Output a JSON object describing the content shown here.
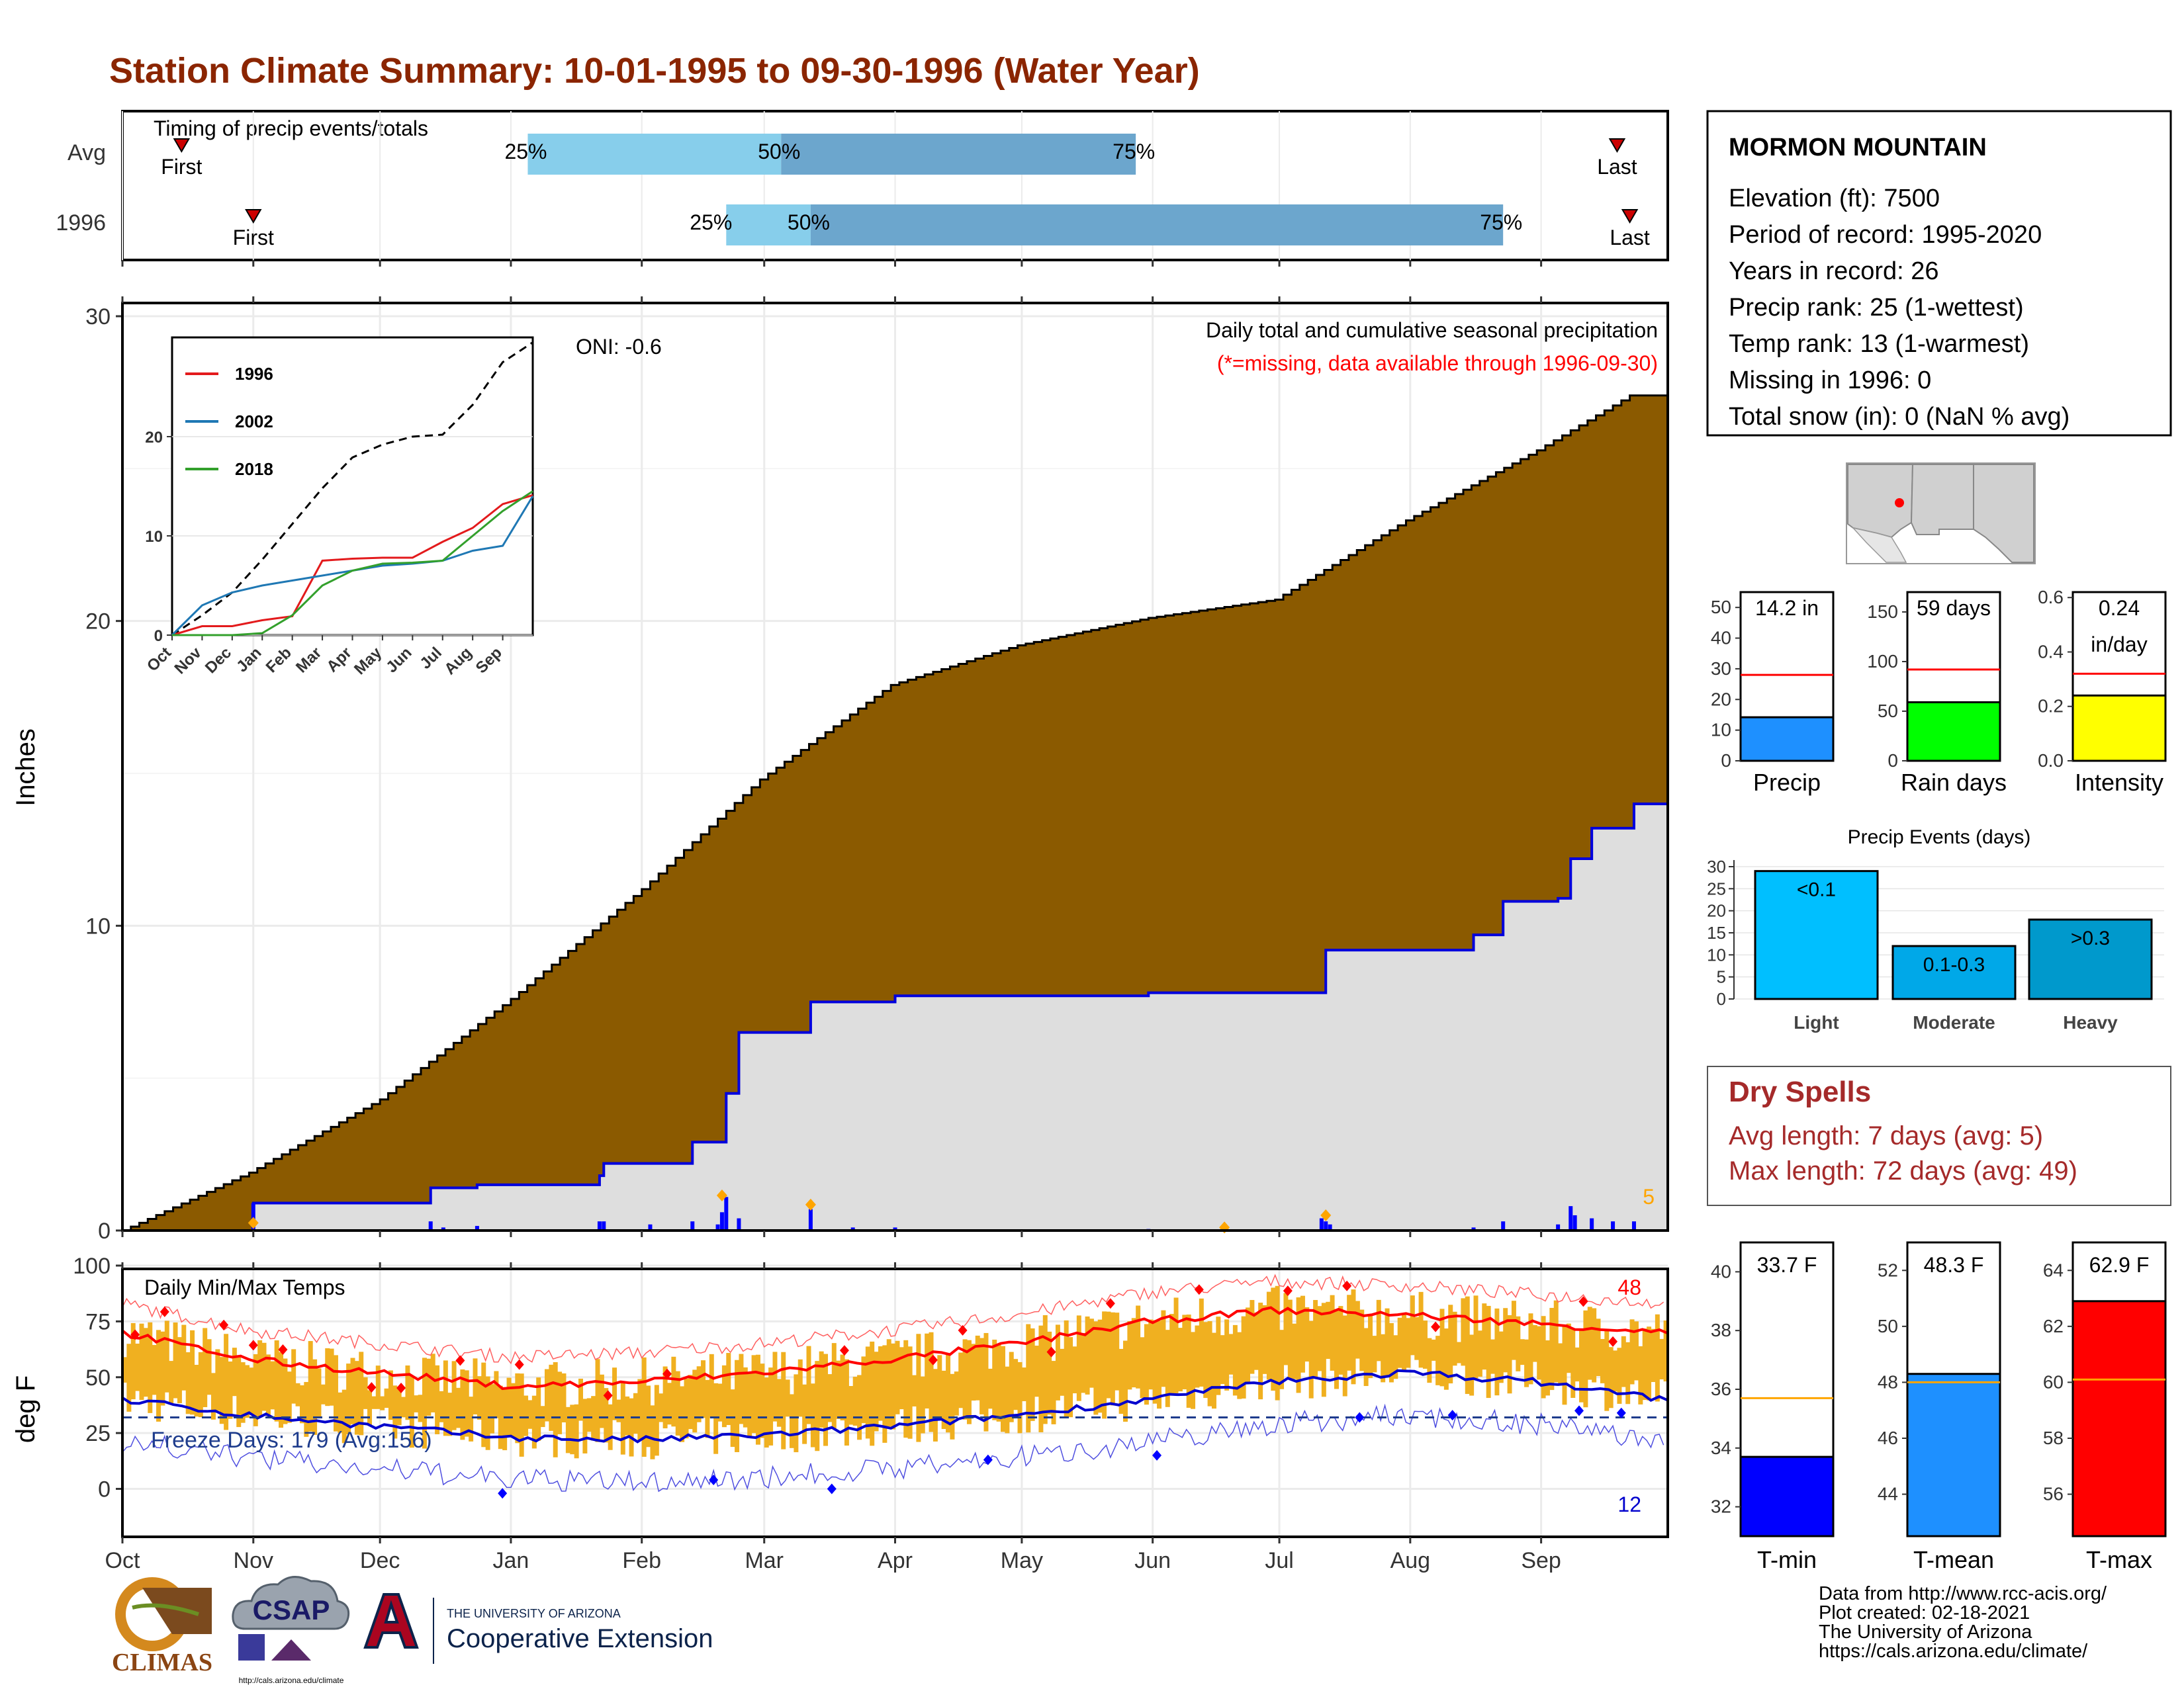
{
  "title": "Station Climate Summary: 10-01-1995 to 09-30-1996 (Water Year)",
  "colors": {
    "title": "#8B2500",
    "brown": "#8B5A00",
    "light_blue": "#87CEEB",
    "mid_blue": "#6CA6CD",
    "bar_blue": "#0000FF",
    "orange": "#FFA500",
    "gold": "#F0B020",
    "red": "#FF0000",
    "navy": "#00008B",
    "gray_fill": "#DEDEDE",
    "dry_red": "#A52A2A"
  },
  "months": [
    "Oct",
    "Nov",
    "Dec",
    "Jan",
    "Feb",
    "Mar",
    "Apr",
    "May",
    "Jun",
    "Jul",
    "Aug",
    "Sep"
  ],
  "timing": {
    "label": "Timing of precip events/totals",
    "rows": [
      "Avg",
      "1996"
    ],
    "avg": {
      "first_day": 14,
      "p25": 96,
      "p50": 156,
      "p75": 240,
      "last_day": 354
    },
    "y1996": {
      "first_day": 31,
      "p25": 143,
      "p50": 163,
      "p75": 327,
      "last_day": 357
    },
    "first_label": "First",
    "last_label": "Last",
    "pct_labels": [
      "25%",
      "50%",
      "75%"
    ]
  },
  "precip": {
    "ylabel": "Inches",
    "title": "Daily total and cumulative seasonal precipitation",
    "missing_note": "(*=missing, data available through 1996-09-30)",
    "max_daily_label": "5",
    "ylim": [
      0,
      30
    ],
    "yticks": [
      "0",
      "10",
      "20",
      "30"
    ],
    "avg_cumulative": [
      [
        0,
        0
      ],
      [
        30,
        1.9
      ],
      [
        61,
        4.3
      ],
      [
        92,
        7.6
      ],
      [
        123,
        11.2
      ],
      [
        151,
        14.8
      ],
      [
        182,
        17.9
      ],
      [
        212,
        19.2
      ],
      [
        243,
        20.1
      ],
      [
        273,
        20.7
      ],
      [
        304,
        23.3
      ],
      [
        335,
        25.6
      ],
      [
        357,
        27.4
      ],
      [
        366,
        27.4
      ],
      [
        366,
        26
      ]
    ],
    "year_cumulative": [
      [
        0,
        0
      ],
      [
        30,
        0
      ],
      [
        31,
        0.9
      ],
      [
        59,
        0.9
      ],
      [
        72,
        0.9
      ],
      [
        73,
        1.4
      ],
      [
        84,
        1.5
      ],
      [
        113,
        1.8
      ],
      [
        114,
        2.2
      ],
      [
        135,
        2.9
      ],
      [
        143,
        4.5
      ],
      [
        146,
        6.5
      ],
      [
        160,
        6.5
      ],
      [
        163,
        7.5
      ],
      [
        183,
        7.7
      ],
      [
        243,
        7.8
      ],
      [
        263,
        7.8
      ],
      [
        285,
        9.2
      ],
      [
        320,
        9.7
      ],
      [
        327,
        10.8
      ],
      [
        340,
        10.9
      ],
      [
        343,
        12.2
      ],
      [
        348,
        13.2
      ],
      [
        358,
        14.0
      ],
      [
        366,
        14.1
      ]
    ],
    "daily_bars": [
      [
        31,
        0.9
      ],
      [
        73,
        0.3
      ],
      [
        76,
        0.1
      ],
      [
        84,
        0.15
      ],
      [
        113,
        0.3
      ],
      [
        114,
        0.3
      ],
      [
        125,
        0.2
      ],
      [
        135,
        0.3
      ],
      [
        141,
        0.2
      ],
      [
        142,
        0.6
      ],
      [
        143,
        1.1
      ],
      [
        146,
        0.4
      ],
      [
        163,
        0.7
      ],
      [
        173,
        0.1
      ],
      [
        183,
        0.1
      ],
      [
        243,
        0.05
      ],
      [
        284,
        0.4
      ],
      [
        285,
        0.3
      ],
      [
        286,
        0.2
      ],
      [
        320,
        0.1
      ],
      [
        327,
        0.3
      ],
      [
        340,
        0.2
      ],
      [
        343,
        0.8
      ],
      [
        344,
        0.5
      ],
      [
        348,
        0.4
      ],
      [
        353,
        0.3
      ],
      [
        358,
        0.3
      ]
    ],
    "orange_markers": [
      [
        31,
        0.25
      ],
      [
        142,
        1.15
      ],
      [
        163,
        0.85
      ],
      [
        261,
        0.1
      ],
      [
        285,
        0.5
      ]
    ],
    "inset": {
      "ylim": [
        0,
        30
      ],
      "yticks": [
        "0",
        "10",
        "20"
      ],
      "months": [
        "Oct",
        "Nov",
        "Dec",
        "Jan",
        "Feb",
        "Mar",
        "Apr",
        "May",
        "Jun",
        "Jul",
        "Aug",
        "Sep"
      ],
      "oni_label": "ONI: -0.6",
      "legend": [
        {
          "name": "1996",
          "color": "#E31A1C"
        },
        {
          "name": "2002",
          "color": "#1F78B4"
        },
        {
          "name": "2018",
          "color": "#33A02C"
        }
      ],
      "avg": [
        [
          0,
          0
        ],
        [
          1,
          2
        ],
        [
          2,
          4.3
        ],
        [
          3,
          7.6
        ],
        [
          4,
          11.2
        ],
        [
          5,
          14.8
        ],
        [
          6,
          17.9
        ],
        [
          7,
          19.2
        ],
        [
          8,
          20
        ],
        [
          9,
          20.2
        ],
        [
          10,
          23.2
        ],
        [
          11,
          27.5
        ],
        [
          12,
          29.5
        ]
      ],
      "s1996": [
        [
          0,
          0
        ],
        [
          1,
          0.9
        ],
        [
          2,
          0.9
        ],
        [
          3,
          1.5
        ],
        [
          4,
          1.9
        ],
        [
          5,
          7.5
        ],
        [
          6,
          7.7
        ],
        [
          7,
          7.8
        ],
        [
          8,
          7.8
        ],
        [
          9,
          9.4
        ],
        [
          10,
          10.8
        ],
        [
          11,
          13.2
        ],
        [
          12,
          14.1
        ]
      ],
      "s2002": [
        [
          0,
          0
        ],
        [
          1,
          3
        ],
        [
          2,
          4.3
        ],
        [
          3,
          5
        ],
        [
          4,
          5.5
        ],
        [
          5,
          6
        ],
        [
          6,
          6.5
        ],
        [
          7,
          7
        ],
        [
          8,
          7.2
        ],
        [
          9,
          7.5
        ],
        [
          10,
          8.5
        ],
        [
          11,
          9
        ],
        [
          12,
          14
        ]
      ],
      "s2018": [
        [
          0,
          0
        ],
        [
          1,
          0
        ],
        [
          2,
          0
        ],
        [
          3,
          0.2
        ],
        [
          4,
          2
        ],
        [
          5,
          5
        ],
        [
          6,
          6.5
        ],
        [
          7,
          7.2
        ],
        [
          8,
          7.3
        ],
        [
          9,
          7.5
        ],
        [
          10,
          10
        ],
        [
          11,
          12.5
        ],
        [
          12,
          14.5
        ]
      ]
    }
  },
  "temps": {
    "ylabel": "deg F",
    "title": "Daily Min/Max Temps",
    "freeze_label": "Freeze Days: 179 (Avg:156)",
    "top_count": "48",
    "bottom_count": "12",
    "ylim": [
      -20,
      100
    ],
    "yticks": [
      "0",
      "25",
      "50",
      "75",
      "100"
    ],
    "tmax_avg": [
      [
        0,
        70
      ],
      [
        30,
        58
      ],
      [
        61,
        52
      ],
      [
        92,
        46
      ],
      [
        123,
        48
      ],
      [
        151,
        52
      ],
      [
        182,
        58
      ],
      [
        212,
        65
      ],
      [
        243,
        75
      ],
      [
        273,
        80
      ],
      [
        304,
        78
      ],
      [
        335,
        74
      ],
      [
        366,
        70
      ]
    ],
    "tmin_avg": [
      [
        0,
        40
      ],
      [
        30,
        33
      ],
      [
        61,
        28
      ],
      [
        92,
        23
      ],
      [
        123,
        22
      ],
      [
        151,
        24
      ],
      [
        182,
        28
      ],
      [
        212,
        33
      ],
      [
        243,
        40
      ],
      [
        273,
        48
      ],
      [
        304,
        52
      ],
      [
        335,
        48
      ],
      [
        366,
        40
      ]
    ],
    "freeze_line": 32
  },
  "station": {
    "name": "MORMON MOUNTAIN",
    "lines": [
      "Elevation (ft): 7500",
      "Period of record: 1995-2020",
      "Years in record: 26",
      "Precip rank: 25 (1-wettest)",
      "Temp rank: 13 (1-warmest)",
      "Missing in 1996: 0",
      "Total snow (in): 0 (NaN % avg)"
    ]
  },
  "summary_bars": [
    {
      "label": "Precip",
      "value": 14.2,
      "avg": 28,
      "value_text": "14.2 in",
      "ymax": 55,
      "yticks": [
        "0",
        "10",
        "20",
        "30",
        "40",
        "50"
      ],
      "tickvals": [
        0,
        10,
        20,
        30,
        40,
        50
      ],
      "color": "#1E90FF"
    },
    {
      "label": "Rain days",
      "value": 59,
      "avg": 92,
      "value_text": "59 days",
      "ymax": 170,
      "yticks": [
        "0",
        "50",
        "100",
        "150"
      ],
      "tickvals": [
        0,
        50,
        100,
        150
      ],
      "color": "#00FF00"
    },
    {
      "label": "Intensity",
      "value": 0.24,
      "avg": 0.32,
      "value_text": "0.24",
      "value_text2": "in/day",
      "ymax": 0.62,
      "yticks": [
        "0.0",
        "0.2",
        "0.4",
        "0.6"
      ],
      "tickvals": [
        0,
        0.2,
        0.4,
        0.6
      ],
      "color": "#FFFF00"
    }
  ],
  "precip_events": {
    "title": "Precip Events (days)",
    "yticks": [
      "0",
      "5",
      "10",
      "15",
      "20",
      "25",
      "30"
    ],
    "bars": [
      {
        "label": "Light",
        "value": 29,
        "text": "<0.1",
        "color": "#00BFFF"
      },
      {
        "label": "Moderate",
        "value": 12,
        "text": "0.1-0.3",
        "color": "#00A8E8"
      },
      {
        "label": "Heavy",
        "value": 18,
        "text": ">0.3",
        "color": "#0099CC"
      }
    ]
  },
  "dry_spells": {
    "title": "Dry Spells",
    "avg_line": "Avg length: 7 days (avg: 5)",
    "max_line": "Max length: 72 days (avg: 49)"
  },
  "temp_bars": [
    {
      "label": "T-min",
      "value": 33.7,
      "avg": 35.7,
      "value_text": "33.7 F",
      "ymin": 31,
      "ymax": 41,
      "yticks": [
        "32",
        "34",
        "36",
        "38",
        "40"
      ],
      "tickvals": [
        32,
        34,
        36,
        38,
        40
      ],
      "color": "#0000FF"
    },
    {
      "label": "T-mean",
      "value": 48.3,
      "avg": 48.0,
      "value_text": "48.3 F",
      "ymin": 42.5,
      "ymax": 53,
      "yticks": [
        "44",
        "46",
        "48",
        "50",
        "52"
      ],
      "tickvals": [
        44,
        46,
        48,
        50,
        52
      ],
      "color": "#1E90FF"
    },
    {
      "label": "T-max",
      "value": 62.9,
      "avg": 60.1,
      "value_text": "62.9 F",
      "ymin": 54.5,
      "ymax": 65,
      "yticks": [
        "56",
        "58",
        "60",
        "62",
        "64"
      ],
      "tickvals": [
        56,
        58,
        60,
        62,
        64
      ],
      "color": "#FF0000"
    }
  ],
  "footer": {
    "lines": [
      "Data from http://www.rcc-acis.org/",
      "Plot created: 02-18-2021",
      "The University of Arizona",
      "https://cals.arizona.edu/climate/"
    ],
    "climas": "CLIMAS",
    "csap": "CSAP",
    "csap_url": "http://cals.arizona.edu/climate",
    "ua_small": "THE UNIVERSITY OF ARIZONA",
    "ua_big": "Cooperative Extension"
  }
}
